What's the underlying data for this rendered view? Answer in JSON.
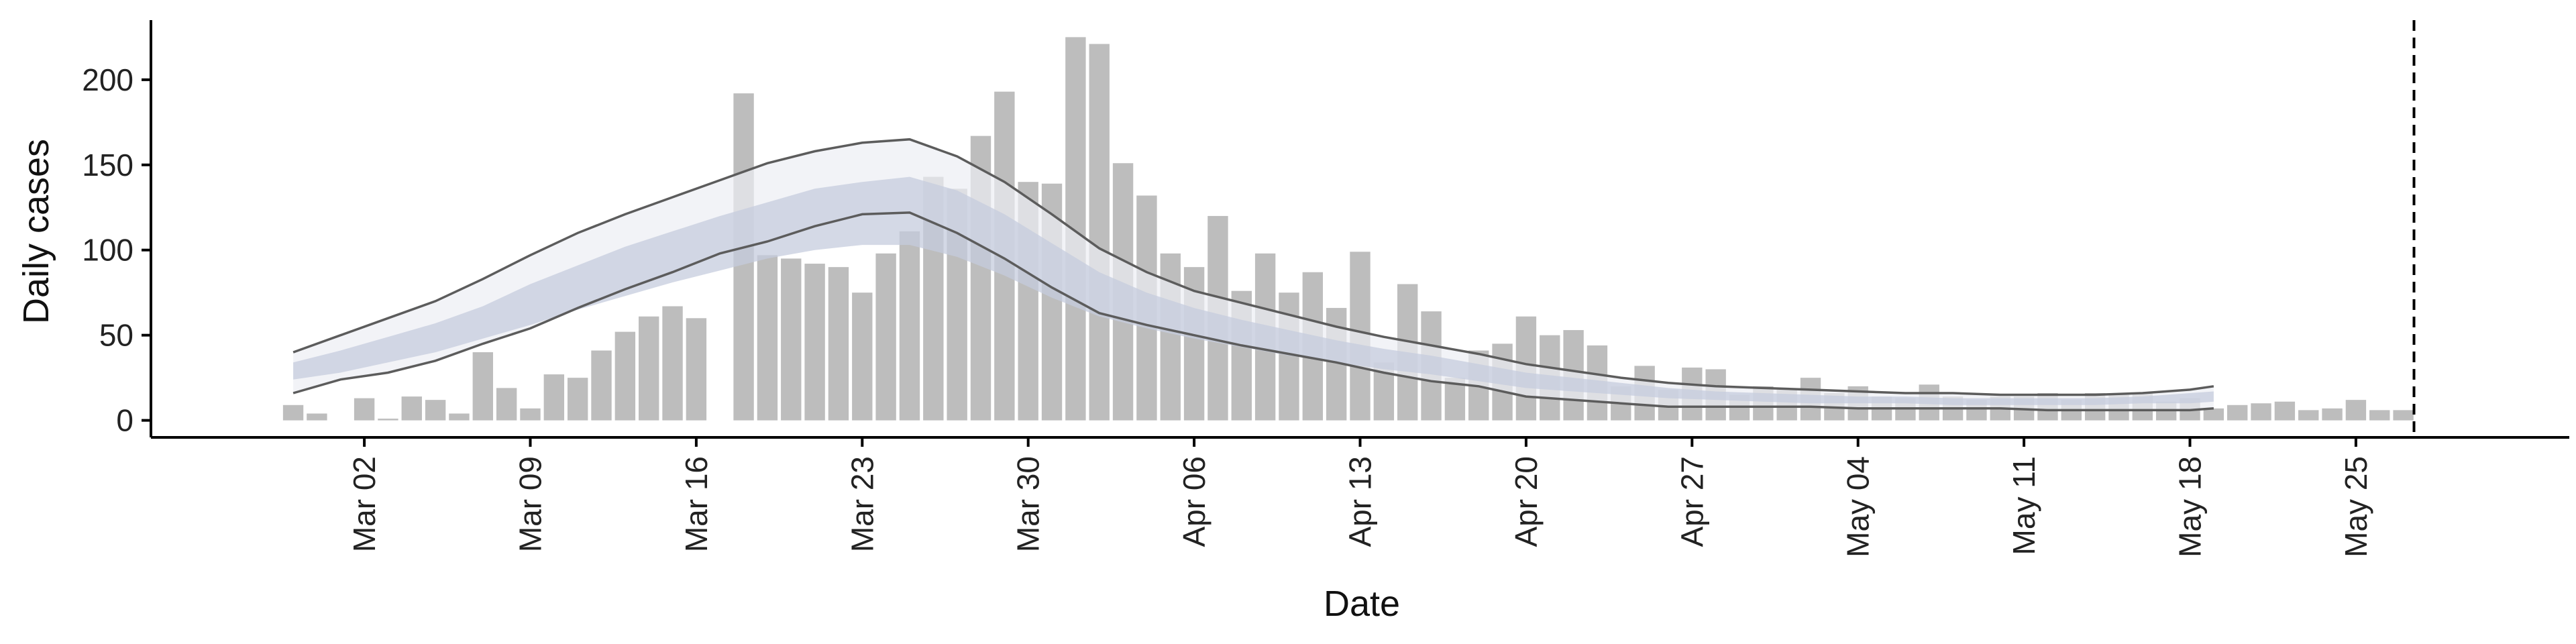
{
  "chart_data": {
    "type": "bar",
    "xlabel": "Date",
    "ylabel": "Daily cases",
    "x_range": [
      "2020-02-22",
      "2020-06-03"
    ],
    "ylim": [
      -10,
      235
    ],
    "grid": false,
    "legend": "none",
    "x_ticks": [
      {
        "date": "2020-03-02",
        "label": "Mar 02"
      },
      {
        "date": "2020-03-09",
        "label": "Mar 09"
      },
      {
        "date": "2020-03-16",
        "label": "Mar 16"
      },
      {
        "date": "2020-03-23",
        "label": "Mar 23"
      },
      {
        "date": "2020-03-30",
        "label": "Mar 30"
      },
      {
        "date": "2020-04-06",
        "label": "Apr 06"
      },
      {
        "date": "2020-04-13",
        "label": "Apr 13"
      },
      {
        "date": "2020-04-20",
        "label": "Apr 20"
      },
      {
        "date": "2020-04-27",
        "label": "Apr 27"
      },
      {
        "date": "2020-05-04",
        "label": "May 04"
      },
      {
        "date": "2020-05-11",
        "label": "May 11"
      },
      {
        "date": "2020-05-18",
        "label": "May 18"
      },
      {
        "date": "2020-05-25",
        "label": "May 25"
      }
    ],
    "y_ticks": [
      0,
      50,
      100,
      150,
      200
    ],
    "bars": {
      "dates": [
        "2020-02-28",
        "2020-02-29",
        "2020-03-01",
        "2020-03-02",
        "2020-03-03",
        "2020-03-04",
        "2020-03-05",
        "2020-03-06",
        "2020-03-07",
        "2020-03-08",
        "2020-03-09",
        "2020-03-10",
        "2020-03-11",
        "2020-03-12",
        "2020-03-13",
        "2020-03-14",
        "2020-03-15",
        "2020-03-16",
        "2020-03-17",
        "2020-03-18",
        "2020-03-19",
        "2020-03-20",
        "2020-03-21",
        "2020-03-22",
        "2020-03-23",
        "2020-03-24",
        "2020-03-25",
        "2020-03-26",
        "2020-03-27",
        "2020-03-28",
        "2020-03-29",
        "2020-03-30",
        "2020-03-31",
        "2020-04-01",
        "2020-04-02",
        "2020-04-03",
        "2020-04-04",
        "2020-04-05",
        "2020-04-06",
        "2020-04-07",
        "2020-04-08",
        "2020-04-09",
        "2020-04-10",
        "2020-04-11",
        "2020-04-12",
        "2020-04-13",
        "2020-04-14",
        "2020-04-15",
        "2020-04-16",
        "2020-04-17",
        "2020-04-18",
        "2020-04-19",
        "2020-04-20",
        "2020-04-21",
        "2020-04-22",
        "2020-04-23",
        "2020-04-24",
        "2020-04-25",
        "2020-04-26",
        "2020-04-27",
        "2020-04-28",
        "2020-04-29",
        "2020-04-30",
        "2020-05-01",
        "2020-05-02",
        "2020-05-03",
        "2020-05-04",
        "2020-05-05",
        "2020-05-06",
        "2020-05-07",
        "2020-05-08",
        "2020-05-09",
        "2020-05-10",
        "2020-05-11",
        "2020-05-12",
        "2020-05-13",
        "2020-05-14",
        "2020-05-15",
        "2020-05-16",
        "2020-05-17",
        "2020-05-18",
        "2020-05-19",
        "2020-05-20",
        "2020-05-21",
        "2020-05-22",
        "2020-05-23",
        "2020-05-24",
        "2020-05-25",
        "2020-05-26",
        "2020-05-27"
      ],
      "values": [
        9,
        4,
        0,
        13,
        1,
        14,
        12,
        4,
        40,
        19,
        7,
        27,
        25,
        41,
        52,
        61,
        67,
        60,
        0,
        192,
        97,
        95,
        92,
        90,
        75,
        98,
        111,
        143,
        136,
        167,
        193,
        140,
        139,
        225,
        221,
        151,
        132,
        98,
        90,
        120,
        76,
        98,
        75,
        87,
        66,
        99,
        34,
        80,
        64,
        25,
        41,
        45,
        61,
        50,
        53,
        44,
        20,
        32,
        18,
        31,
        30,
        15,
        20,
        18,
        25,
        16,
        20,
        14,
        13,
        21,
        14,
        12,
        14,
        14,
        16,
        12,
        16,
        15,
        16,
        11,
        13,
        7,
        9,
        10,
        11,
        6,
        7,
        12,
        6,
        6
      ]
    },
    "estimate": {
      "dates": [
        "2020-02-28",
        "2020-03-01",
        "2020-03-03",
        "2020-03-05",
        "2020-03-07",
        "2020-03-09",
        "2020-03-11",
        "2020-03-13",
        "2020-03-15",
        "2020-03-17",
        "2020-03-19",
        "2020-03-21",
        "2020-03-23",
        "2020-03-25",
        "2020-03-27",
        "2020-03-29",
        "2020-03-31",
        "2020-04-02",
        "2020-04-04",
        "2020-04-06",
        "2020-04-08",
        "2020-04-10",
        "2020-04-12",
        "2020-04-14",
        "2020-04-16",
        "2020-04-18",
        "2020-04-20",
        "2020-04-22",
        "2020-04-24",
        "2020-04-26",
        "2020-04-28",
        "2020-04-30",
        "2020-05-02",
        "2020-05-04",
        "2020-05-06",
        "2020-05-08",
        "2020-05-10",
        "2020-05-12",
        "2020-05-14",
        "2020-05-16",
        "2020-05-18",
        "2020-05-19"
      ],
      "upper_90": [
        40,
        50,
        60,
        70,
        83,
        97,
        110,
        121,
        131,
        141,
        151,
        158,
        163,
        165,
        155,
        140,
        121,
        101,
        87,
        76,
        69,
        62,
        55,
        49,
        44,
        39,
        33,
        29,
        25,
        22,
        20,
        19,
        18,
        17,
        16,
        16,
        15,
        15,
        15,
        16,
        18,
        20
      ],
      "upper_50": [
        34,
        41,
        49,
        57,
        67,
        80,
        91,
        102,
        111,
        120,
        128,
        136,
        140,
        143,
        135,
        121,
        104,
        87,
        75,
        66,
        59,
        53,
        47,
        42,
        38,
        33,
        28,
        25,
        22,
        19,
        17,
        16,
        15,
        14,
        14,
        13,
        13,
        13,
        13,
        14,
        16,
        17
      ],
      "median": [
        29,
        34,
        41,
        48,
        57,
        67,
        77,
        86,
        95,
        103,
        111,
        117,
        121,
        122,
        114,
        102,
        87,
        74,
        64,
        57,
        51,
        45,
        40,
        36,
        32,
        28,
        24,
        21,
        18,
        16,
        15,
        13,
        13,
        12,
        12,
        11,
        11,
        11,
        11,
        12,
        13,
        14
      ],
      "lower_50": [
        24,
        28,
        34,
        40,
        48,
        56,
        65,
        73,
        81,
        88,
        95,
        100,
        103,
        103,
        96,
        85,
        72,
        61,
        54,
        48,
        43,
        38,
        34,
        30,
        27,
        23,
        19,
        17,
        15,
        13,
        12,
        11,
        10,
        10,
        10,
        9,
        9,
        9,
        9,
        10,
        10,
        11
      ],
      "lower_90": [
        16,
        24,
        28,
        35,
        45,
        54,
        66,
        77,
        87,
        98,
        105,
        114,
        121,
        122,
        110,
        95,
        78,
        63,
        56,
        50,
        44,
        39,
        34,
        28,
        23,
        20,
        14,
        12,
        10,
        8,
        8,
        8,
        8,
        7,
        7,
        7,
        7,
        6,
        6,
        6,
        6,
        7
      ]
    },
    "reference_line": {
      "date": "2020-05-27",
      "style": "dashed"
    },
    "colors": {
      "bar": "#bdbdbd",
      "band_90": "#eceef4",
      "band_50": "#c6ccdd",
      "interval_line": "#5c5c5c",
      "axis": "#000000",
      "reference_line": "#000000"
    }
  }
}
